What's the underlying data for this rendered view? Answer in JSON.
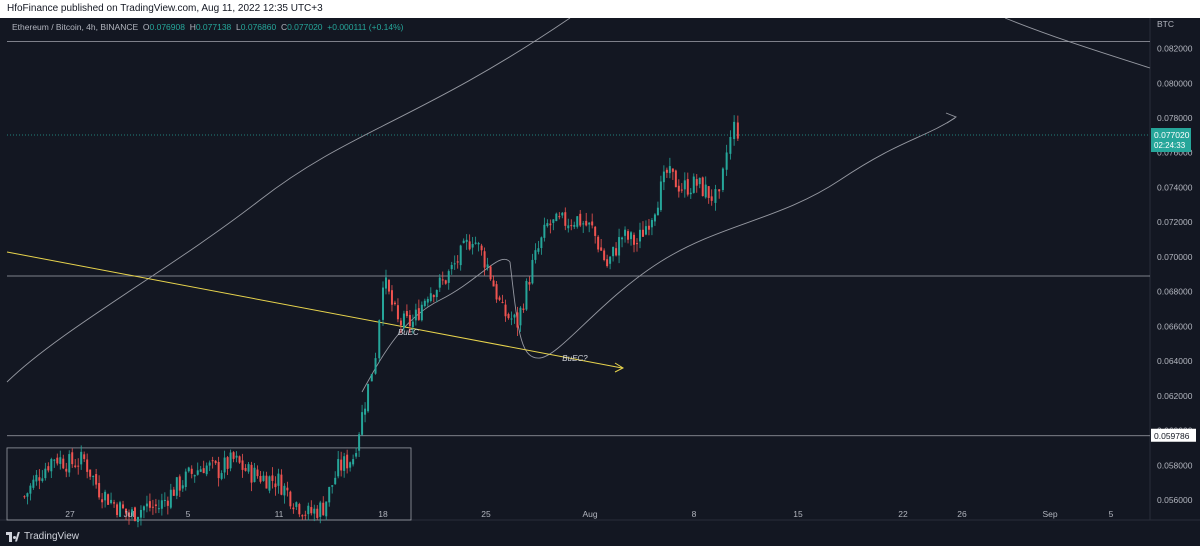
{
  "header": {
    "published": "HfoFinance published on TradingView.com, Aug 11, 2022 12:35 UTC+3"
  },
  "legend": {
    "title": "Ethereum / Bitcoin, 4h, BINANCE",
    "o_label": "O",
    "o_value": "0.076908",
    "h_label": "H",
    "h_value": "0.077138",
    "l_label": "L",
    "l_value": "0.076860",
    "c_label": "C",
    "c_value": "0.077020",
    "change": "+0.000111 (+0.14%)"
  },
  "footer": {
    "brand": "TradingView",
    "logo_icon": "tradingview-logo-icon"
  },
  "colors": {
    "background": "#131722",
    "up": "#26a69a",
    "down": "#ef5350",
    "trendline": "#e8d44d",
    "drawing": "#9598a1"
  },
  "chart_data": {
    "type": "candlestick",
    "currency": "BTC",
    "ylim": [
      0.0548,
      0.084
    ],
    "yticks": [
      "0.082000",
      "0.080000",
      "0.078000",
      "0.076000",
      "0.074000",
      "0.072000",
      "0.070000",
      "0.068000",
      "0.066000",
      "0.064000",
      "0.062000",
      "0.060000",
      "0.058000",
      "0.056000"
    ],
    "xticks": [
      "27",
      "Jul",
      "5",
      "11",
      "18",
      "25",
      "Aug",
      "8",
      "15",
      "22",
      "26",
      "Sep",
      "5"
    ],
    "last_price": "0.077020",
    "countdown": "02:24:33",
    "level_badge": "0.059786",
    "horizontal_levels": [
      0.0824,
      0.0689,
      0.0597
    ],
    "annotations": [
      {
        "text": "BuEC",
        "x": "Jul 19",
        "y": 0.0655
      },
      {
        "text": "BuEC?",
        "x": "Jul 30",
        "y": 0.064
      }
    ],
    "path": [
      [
        "Jun 24",
        0.0562
      ],
      [
        "Jun 25",
        0.0575
      ],
      [
        "Jun 26",
        0.0585
      ],
      [
        "Jun 27",
        0.0581
      ],
      [
        "Jun 28",
        0.0583
      ],
      [
        "Jun 29",
        0.0566
      ],
      [
        "Jun 30",
        0.0558
      ],
      [
        "Jul 1",
        0.0551
      ],
      [
        "Jul 2",
        0.0556
      ],
      [
        "Jul 3",
        0.0556
      ],
      [
        "Jul 4",
        0.0566
      ],
      [
        "Jul 5",
        0.0574
      ],
      [
        "Jul 6",
        0.058
      ],
      [
        "Jul 7",
        0.0577
      ],
      [
        "Jul 8",
        0.0583
      ],
      [
        "Jul 9",
        0.0576
      ],
      [
        "Jul 10",
        0.0573
      ],
      [
        "Jul 11",
        0.0571
      ],
      [
        "Jul 12",
        0.056
      ],
      [
        "Jul 13",
        0.0552
      ],
      [
        "Jul 14",
        0.0556
      ],
      [
        "Jul 15",
        0.0578
      ],
      [
        "Jul 16",
        0.0585
      ],
      [
        "Jul 17",
        0.0625
      ],
      [
        "Jul 17.5",
        0.0645
      ],
      [
        "Jul 18",
        0.0688
      ],
      [
        "Jul 19",
        0.0662
      ],
      [
        "Jul 20",
        0.0662
      ],
      [
        "Jul 21",
        0.068
      ],
      [
        "Jul 22",
        0.0685
      ],
      [
        "Jul 23",
        0.0698
      ],
      [
        "Jul 24",
        0.0712
      ],
      [
        "Jul 25",
        0.0695
      ],
      [
        "Jul 26",
        0.0668
      ],
      [
        "Jul 27",
        0.0662
      ],
      [
        "Jul 28",
        0.0695
      ],
      [
        "Jul 29",
        0.0718
      ],
      [
        "Jul 30",
        0.072
      ],
      [
        "Jul 31",
        0.0722
      ],
      [
        "Aug 1",
        0.0716
      ],
      [
        "Aug 2",
        0.0695
      ],
      [
        "Aug 3",
        0.0712
      ],
      [
        "Aug 4",
        0.0708
      ],
      [
        "Aug 5",
        0.0725
      ],
      [
        "Aug 6",
        0.0748
      ],
      [
        "Aug 7",
        0.074
      ],
      [
        "Aug 8",
        0.0742
      ],
      [
        "Aug 9",
        0.0735
      ],
      [
        "Aug 9.5",
        0.0732
      ],
      [
        "Aug 10",
        0.076
      ],
      [
        "Aug 10.5",
        0.0775
      ],
      [
        "Aug 11",
        0.077
      ]
    ]
  }
}
